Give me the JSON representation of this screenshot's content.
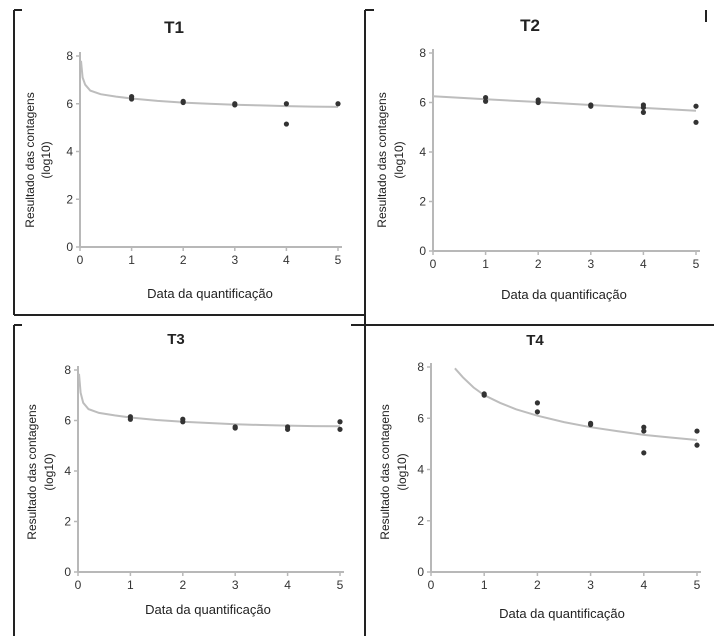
{
  "chart_data": [
    {
      "type": "scatter",
      "title": "T1",
      "xlabel": "Data da quantificação",
      "ylabel": [
        "Resultado das contagens",
        "(log10)"
      ],
      "xlim": [
        0,
        5
      ],
      "ylim": [
        0,
        8
      ],
      "x_ticks": [
        "0",
        "1",
        "2",
        "3",
        "4",
        "5"
      ],
      "y_ticks": [
        "0",
        "2",
        "4",
        "6",
        "8"
      ],
      "points": [
        {
          "x": 1,
          "y": 6.3
        },
        {
          "x": 1,
          "y": 6.2
        },
        {
          "x": 2,
          "y": 6.1
        },
        {
          "x": 2,
          "y": 6.05
        },
        {
          "x": 3,
          "y": 6.0
        },
        {
          "x": 3,
          "y": 5.95
        },
        {
          "x": 4,
          "y": 6.0
        },
        {
          "x": 4,
          "y": 5.15
        },
        {
          "x": 5,
          "y": 6.0
        }
      ],
      "fit_line": {
        "x": [
          0.02,
          0.05,
          0.1,
          0.2,
          0.4,
          0.7,
          1,
          1.5,
          2,
          2.5,
          3,
          3.5,
          4,
          4.5,
          5
        ],
        "y": [
          7.8,
          7.1,
          6.8,
          6.55,
          6.4,
          6.3,
          6.22,
          6.12,
          6.05,
          6.0,
          5.96,
          5.93,
          5.9,
          5.88,
          5.87
        ]
      }
    },
    {
      "type": "scatter",
      "title": "T2",
      "xlabel": "Data da quantificação",
      "ylabel": [
        "Resultado das contagens",
        "(log10)"
      ],
      "xlim": [
        0,
        5
      ],
      "ylim": [
        0,
        8
      ],
      "x_ticks": [
        "0",
        "1",
        "2",
        "3",
        "4",
        "5"
      ],
      "y_ticks": [
        "0",
        "2",
        "4",
        "6",
        "8"
      ],
      "points": [
        {
          "x": 1,
          "y": 6.2
        },
        {
          "x": 1,
          "y": 6.05
        },
        {
          "x": 2,
          "y": 6.1
        },
        {
          "x": 2,
          "y": 6.0
        },
        {
          "x": 3,
          "y": 5.9
        },
        {
          "x": 3,
          "y": 5.85
        },
        {
          "x": 4,
          "y": 5.9
        },
        {
          "x": 4,
          "y": 5.8
        },
        {
          "x": 4,
          "y": 5.6
        },
        {
          "x": 5,
          "y": 5.85
        },
        {
          "x": 5,
          "y": 5.2
        }
      ],
      "fit_line": {
        "x": [
          0,
          1,
          2,
          3,
          4,
          5
        ],
        "y": [
          6.25,
          6.13,
          6.02,
          5.9,
          5.78,
          5.67
        ]
      }
    },
    {
      "type": "scatter",
      "title": "T3",
      "xlabel": "Data da quantificação",
      "ylabel": [
        "Resultado das contagens",
        "(log10)"
      ],
      "xlim": [
        0,
        5
      ],
      "ylim": [
        0,
        8
      ],
      "x_ticks": [
        "0",
        "1",
        "2",
        "3",
        "4",
        "5"
      ],
      "y_ticks": [
        "0",
        "2",
        "4",
        "6",
        "8"
      ],
      "points": [
        {
          "x": 1,
          "y": 6.15
        },
        {
          "x": 1,
          "y": 6.05
        },
        {
          "x": 2,
          "y": 6.05
        },
        {
          "x": 2,
          "y": 5.95
        },
        {
          "x": 3,
          "y": 5.75
        },
        {
          "x": 3,
          "y": 5.7
        },
        {
          "x": 4,
          "y": 5.75
        },
        {
          "x": 4,
          "y": 5.65
        },
        {
          "x": 5,
          "y": 5.95
        },
        {
          "x": 5,
          "y": 5.65
        }
      ],
      "fit_line": {
        "x": [
          0.02,
          0.05,
          0.1,
          0.2,
          0.4,
          0.7,
          1,
          1.5,
          2,
          2.5,
          3,
          3.5,
          4,
          4.5,
          5
        ],
        "y": [
          7.85,
          7.1,
          6.7,
          6.45,
          6.3,
          6.2,
          6.12,
          6.02,
          5.95,
          5.9,
          5.85,
          5.82,
          5.8,
          5.78,
          5.77
        ]
      }
    },
    {
      "type": "scatter",
      "title": "T4",
      "xlabel": "Data da quantificação",
      "ylabel": [
        "Resultado das contagens",
        "(log10)"
      ],
      "xlim": [
        0,
        5
      ],
      "ylim": [
        0,
        8
      ],
      "x_ticks": [
        "0",
        "1",
        "2",
        "3",
        "4",
        "5"
      ],
      "y_ticks": [
        "0",
        "2",
        "4",
        "6",
        "8"
      ],
      "points": [
        {
          "x": 1,
          "y": 6.95
        },
        {
          "x": 1,
          "y": 6.9
        },
        {
          "x": 2,
          "y": 6.6
        },
        {
          "x": 2,
          "y": 6.25
        },
        {
          "x": 3,
          "y": 5.8
        },
        {
          "x": 3,
          "y": 5.75
        },
        {
          "x": 4,
          "y": 5.65
        },
        {
          "x": 4,
          "y": 5.5
        },
        {
          "x": 4,
          "y": 4.65
        },
        {
          "x": 5,
          "y": 5.5
        },
        {
          "x": 5,
          "y": 4.95
        }
      ],
      "fit_line": {
        "x": [
          0.45,
          0.6,
          0.8,
          1,
          1.3,
          1.6,
          2,
          2.5,
          3,
          3.5,
          4,
          4.5,
          5
        ],
        "y": [
          7.95,
          7.6,
          7.2,
          6.9,
          6.6,
          6.35,
          6.1,
          5.85,
          5.65,
          5.5,
          5.35,
          5.25,
          5.15
        ]
      }
    }
  ]
}
